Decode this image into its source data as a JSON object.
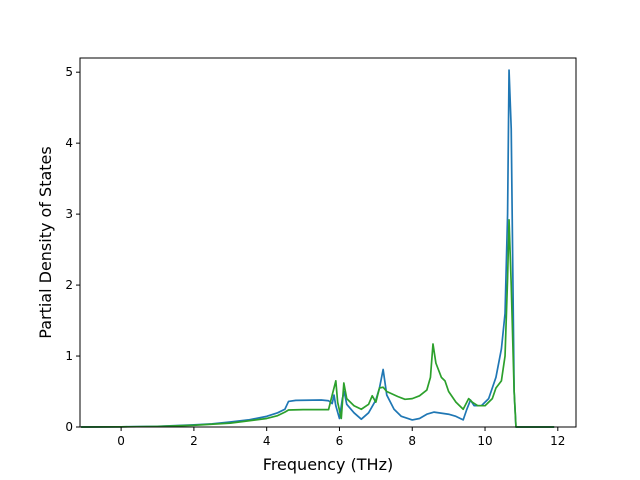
{
  "chart_data": {
    "type": "line",
    "title": "",
    "xlabel": "Frequency (THz)",
    "ylabel": "Partial Density of States",
    "xlim": [
      -1.13,
      12.5
    ],
    "ylim": [
      0,
      5.2
    ],
    "xticks": [
      0,
      2,
      4,
      6,
      8,
      10,
      12
    ],
    "yticks": [
      0,
      1,
      2,
      3,
      4,
      5
    ],
    "grid": false,
    "legend": "none",
    "series": [
      {
        "color": "#1f77b4",
        "points": [
          [
            -1.1,
            0
          ],
          [
            0,
            0.003
          ],
          [
            1,
            0.01
          ],
          [
            2,
            0.03
          ],
          [
            2.5,
            0.045
          ],
          [
            3,
            0.07
          ],
          [
            3.5,
            0.1
          ],
          [
            4,
            0.15
          ],
          [
            4.3,
            0.2
          ],
          [
            4.5,
            0.25
          ],
          [
            4.6,
            0.36
          ],
          [
            4.8,
            0.375
          ],
          [
            5.5,
            0.38
          ],
          [
            5.7,
            0.37
          ],
          [
            5.8,
            0.33
          ],
          [
            5.85,
            0.45
          ],
          [
            5.9,
            0.3
          ],
          [
            6.0,
            0.12
          ],
          [
            6.08,
            0.4
          ],
          [
            6.13,
            0.5
          ],
          [
            6.2,
            0.32
          ],
          [
            6.4,
            0.2
          ],
          [
            6.6,
            0.11
          ],
          [
            6.8,
            0.2
          ],
          [
            7.0,
            0.38
          ],
          [
            7.1,
            0.55
          ],
          [
            7.2,
            0.81
          ],
          [
            7.3,
            0.45
          ],
          [
            7.5,
            0.25
          ],
          [
            7.7,
            0.15
          ],
          [
            8.0,
            0.1
          ],
          [
            8.2,
            0.12
          ],
          [
            8.4,
            0.18
          ],
          [
            8.6,
            0.21
          ],
          [
            9.0,
            0.18
          ],
          [
            9.2,
            0.15
          ],
          [
            9.4,
            0.1
          ],
          [
            9.5,
            0.25
          ],
          [
            9.6,
            0.38
          ],
          [
            9.7,
            0.3
          ],
          [
            9.9,
            0.3
          ],
          [
            10.1,
            0.4
          ],
          [
            10.3,
            0.7
          ],
          [
            10.45,
            1.1
          ],
          [
            10.55,
            1.6
          ],
          [
            10.62,
            3.0
          ],
          [
            10.66,
            5.03
          ],
          [
            10.72,
            4.2
          ],
          [
            10.8,
            0.5
          ],
          [
            10.85,
            0
          ],
          [
            11,
            0
          ],
          [
            11.9,
            0
          ]
        ]
      },
      {
        "color": "#2ca02c",
        "points": [
          [
            -1.1,
            0
          ],
          [
            0,
            0.002
          ],
          [
            1,
            0.008
          ],
          [
            2,
            0.025
          ],
          [
            3,
            0.055
          ],
          [
            4,
            0.12
          ],
          [
            4.3,
            0.16
          ],
          [
            4.5,
            0.21
          ],
          [
            4.6,
            0.24
          ],
          [
            5.0,
            0.245
          ],
          [
            5.5,
            0.245
          ],
          [
            5.7,
            0.245
          ],
          [
            5.8,
            0.45
          ],
          [
            5.9,
            0.65
          ],
          [
            5.95,
            0.35
          ],
          [
            6.05,
            0.12
          ],
          [
            6.12,
            0.62
          ],
          [
            6.2,
            0.4
          ],
          [
            6.4,
            0.3
          ],
          [
            6.6,
            0.25
          ],
          [
            6.8,
            0.32
          ],
          [
            6.9,
            0.44
          ],
          [
            7.0,
            0.35
          ],
          [
            7.1,
            0.55
          ],
          [
            7.2,
            0.56
          ],
          [
            7.3,
            0.5
          ],
          [
            7.6,
            0.43
          ],
          [
            7.8,
            0.39
          ],
          [
            8.0,
            0.4
          ],
          [
            8.2,
            0.44
          ],
          [
            8.4,
            0.52
          ],
          [
            8.5,
            0.7
          ],
          [
            8.57,
            1.17
          ],
          [
            8.65,
            0.9
          ],
          [
            8.8,
            0.7
          ],
          [
            8.9,
            0.65
          ],
          [
            9.0,
            0.5
          ],
          [
            9.2,
            0.35
          ],
          [
            9.4,
            0.25
          ],
          [
            9.55,
            0.4
          ],
          [
            9.65,
            0.35
          ],
          [
            9.8,
            0.3
          ],
          [
            10.0,
            0.3
          ],
          [
            10.2,
            0.4
          ],
          [
            10.3,
            0.55
          ],
          [
            10.45,
            0.65
          ],
          [
            10.55,
            1.0
          ],
          [
            10.62,
            2.1
          ],
          [
            10.66,
            2.92
          ],
          [
            10.72,
            2.0
          ],
          [
            10.8,
            0.5
          ],
          [
            10.85,
            0
          ],
          [
            11,
            0
          ],
          [
            11.9,
            0
          ]
        ]
      }
    ]
  }
}
